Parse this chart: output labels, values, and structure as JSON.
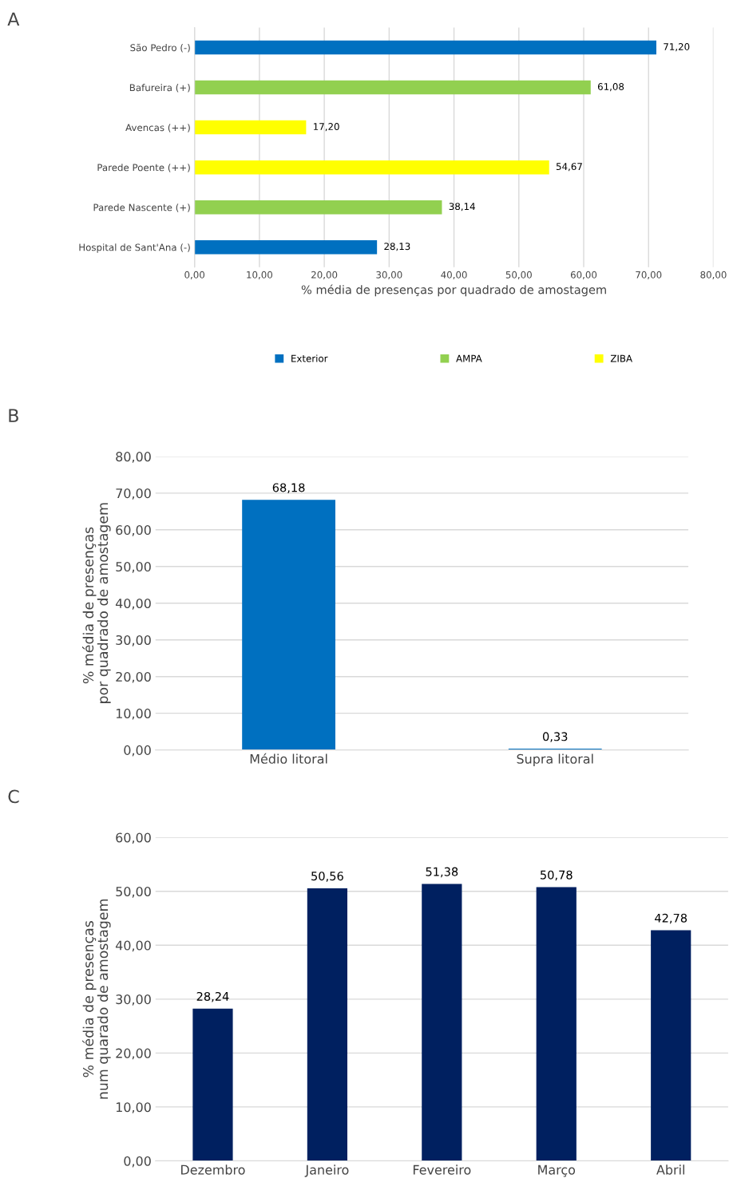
{
  "chart_data": [
    {
      "type": "bar",
      "orientation": "horizontal",
      "stacked": true,
      "xlabel": "% média de presenças por quadrado de amostagem",
      "annotations": [
        "A"
      ],
      "categories": [
        "São Pedro (-)",
        "Bafureira (+)",
        "Avencas (++)",
        "Parede Poente (++)",
        "Parede Nascente (+)",
        "Hospital de Sant'Ana (-)"
      ],
      "series": [
        {
          "name": "Exterior",
          "color": "#0070c0",
          "values": [
            71.2,
            null,
            null,
            null,
            null,
            28.13
          ],
          "value_labels": [
            "71,20",
            null,
            null,
            null,
            null,
            "28,13"
          ]
        },
        {
          "name": "AMPA",
          "color": "#92d050",
          "values": [
            null,
            61.08,
            null,
            null,
            38.14,
            null
          ],
          "value_labels": [
            null,
            "61,08",
            null,
            null,
            "38,14",
            null
          ]
        },
        {
          "name": "ZIBA",
          "color": "#ffff00",
          "values": [
            null,
            null,
            17.2,
            54.67,
            null,
            null
          ],
          "value_labels": [
            null,
            null,
            "17,20",
            "54,67",
            null,
            null
          ]
        }
      ],
      "xlim": [
        0,
        80
      ],
      "xticks": [
        {
          "value": 0,
          "label": "0,00"
        },
        {
          "value": 10,
          "label": "10,00"
        },
        {
          "value": 20,
          "label": "20,00"
        },
        {
          "value": 30,
          "label": "30,00"
        },
        {
          "value": 40,
          "label": "40,00"
        },
        {
          "value": 50,
          "label": "50,00"
        },
        {
          "value": 60,
          "label": "60,00"
        },
        {
          "value": 70,
          "label": "70,00"
        },
        {
          "value": 80,
          "label": "80,00"
        }
      ],
      "grid": "x",
      "legend": "bottom"
    },
    {
      "type": "bar",
      "ylabel": "% média de presenças  por quadrado de amostagem",
      "annotations": [
        "B"
      ],
      "categories": [
        "Médio litoral",
        "Supra litoral"
      ],
      "series": [
        {
          "color": "#0070c0",
          "values": [
            68.18,
            0.33
          ],
          "value_labels": [
            "68,18",
            "0,33"
          ]
        }
      ],
      "ylim": [
        0,
        80
      ],
      "yticks": [
        {
          "value": 0,
          "label": "0,00"
        },
        {
          "value": 10,
          "label": "10,00"
        },
        {
          "value": 20,
          "label": "20,00"
        },
        {
          "value": 30,
          "label": "30,00"
        },
        {
          "value": 40,
          "label": "40,00"
        },
        {
          "value": 50,
          "label": "50,00"
        },
        {
          "value": 60,
          "label": "60,00"
        },
        {
          "value": 70,
          "label": "70,00"
        },
        {
          "value": 80,
          "label": "80,00"
        }
      ],
      "grid": "y"
    },
    {
      "type": "bar",
      "ylabel": "% média de presenças num quarado de amostagem",
      "annotations": [
        "C"
      ],
      "categories": [
        "Dezembro",
        "Janeiro",
        "Fevereiro",
        "Março",
        "Abril"
      ],
      "series": [
        {
          "color": "#002060",
          "values": [
            28.24,
            50.56,
            51.38,
            50.78,
            42.78
          ],
          "value_labels": [
            "28,24",
            "50,56",
            "51,38",
            "50,78",
            "42,78"
          ]
        }
      ],
      "ylim": [
        0,
        60
      ],
      "yticks": [
        {
          "value": 0,
          "label": "0,00"
        },
        {
          "value": 10,
          "label": "10,00"
        },
        {
          "value": 20,
          "label": "20,00"
        },
        {
          "value": 30,
          "label": "30,00"
        },
        {
          "value": 40,
          "label": "40,00"
        },
        {
          "value": 50,
          "label": "50,00"
        },
        {
          "value": 60,
          "label": "60,00"
        }
      ],
      "grid": "y"
    }
  ]
}
